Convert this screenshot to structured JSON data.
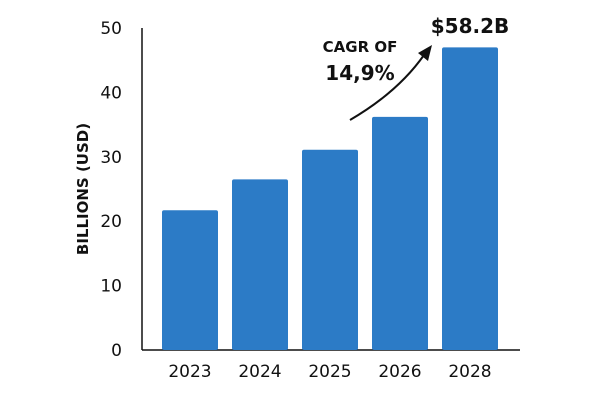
{
  "chart_data": {
    "type": "bar",
    "title": "",
    "xlabel": "",
    "ylabel": "BILLIONS (USD)",
    "categories": [
      "2023",
      "2024",
      "2025",
      "2026",
      "2028"
    ],
    "values": [
      21.7,
      26.5,
      31.1,
      36.2,
      47.0
    ],
    "ylim": [
      0,
      50
    ],
    "yticks": [
      "0",
      "10",
      "20",
      "30",
      "40",
      "50"
    ],
    "grid": false,
    "legend": "none",
    "bar_color": "#2c7bc6",
    "annotations": {
      "cagr_label": "CAGR OF",
      "cagr_value": "14,9%",
      "final_value_label": "$58.2B"
    }
  }
}
